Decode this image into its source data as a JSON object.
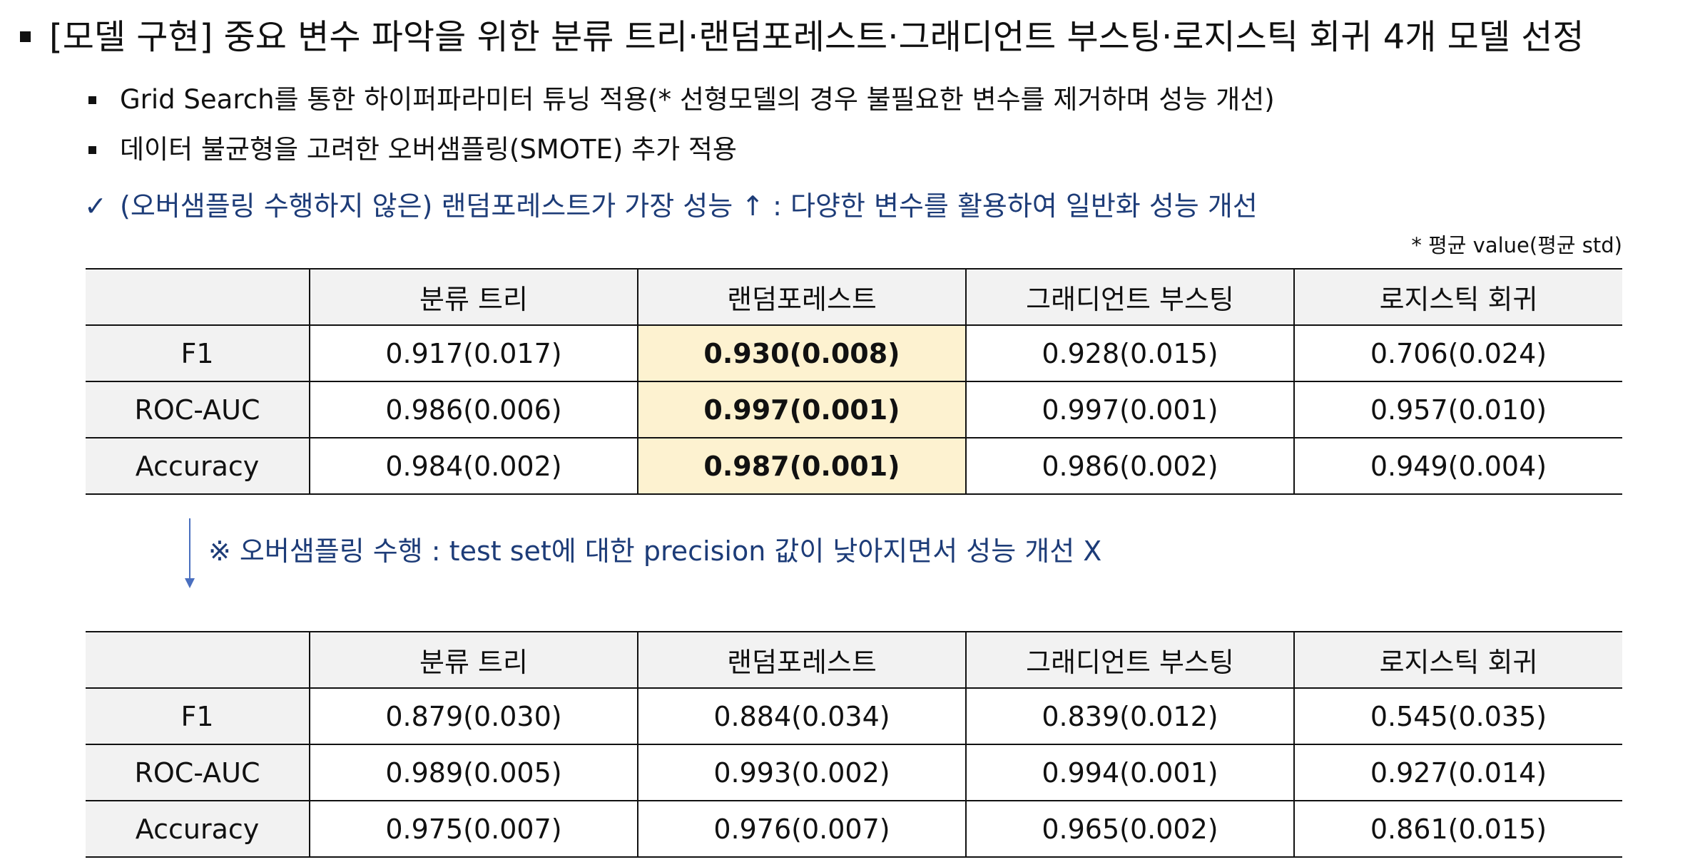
{
  "header": {
    "title": "[모델 구현] 중요 변수 파악을 위한 분류 트리·랜덤포레스트·그래디언트 부스팅·로지스틱 회귀 4개 모델 선정"
  },
  "bullets": [
    "Grid Search를 통한 하이퍼파라미터 튜닝 적용(* 선형모델의 경우 불필요한 변수를 제거하며 성능 개선)",
    "데이터 불균형을 고려한 오버샘플링(SMOTE) 추가 적용"
  ],
  "check": {
    "mark": "✓",
    "text": "(오버샘플링 수행하지 않은) 랜덤포레스트가 가장 성능 ↑ : 다양한 변수를 활용하여 일반화 성능 개선"
  },
  "note": "* 평균 value(평균 std)",
  "table1": {
    "headers": [
      "",
      "분류 트리",
      "랜덤포레스트",
      "그래디언트 부스팅",
      "로지스틱 회귀"
    ],
    "rows": [
      {
        "label": "F1",
        "values": [
          "0.917(0.017)",
          "0.930(0.008)",
          "0.928(0.015)",
          "0.706(0.024)"
        ]
      },
      {
        "label": "ROC-AUC",
        "values": [
          "0.986(0.006)",
          "0.997(0.001)",
          "0.997(0.001)",
          "0.957(0.010)"
        ]
      },
      {
        "label": "Accuracy",
        "values": [
          "0.984(0.002)",
          "0.987(0.001)",
          "0.986(0.002)",
          "0.949(0.004)"
        ]
      }
    ],
    "highlight_column": "랜덤포레스트",
    "highlight_color": "#fdf2d0"
  },
  "arrow_note": "※ 오버샘플링 수행 : test set에 대한 precision 값이 낮아지면서 성능 개선 X",
  "table2": {
    "headers": [
      "",
      "분류 트리",
      "랜덤포레스트",
      "그래디언트 부스팅",
      "로지스틱 회귀"
    ],
    "rows": [
      {
        "label": "F1",
        "values": [
          "0.879(0.030)",
          "0.884(0.034)",
          "0.839(0.012)",
          "0.545(0.035)"
        ]
      },
      {
        "label": "ROC-AUC",
        "values": [
          "0.989(0.005)",
          "0.993(0.002)",
          "0.994(0.001)",
          "0.927(0.014)"
        ]
      },
      {
        "label": "Accuracy",
        "values": [
          "0.975(0.007)",
          "0.976(0.007)",
          "0.965(0.002)",
          "0.861(0.015)"
        ]
      }
    ]
  },
  "colors": {
    "accent_text": "#1d3c78",
    "header_bg": "#f2f2f2",
    "arrow": "#4a6fbf"
  }
}
